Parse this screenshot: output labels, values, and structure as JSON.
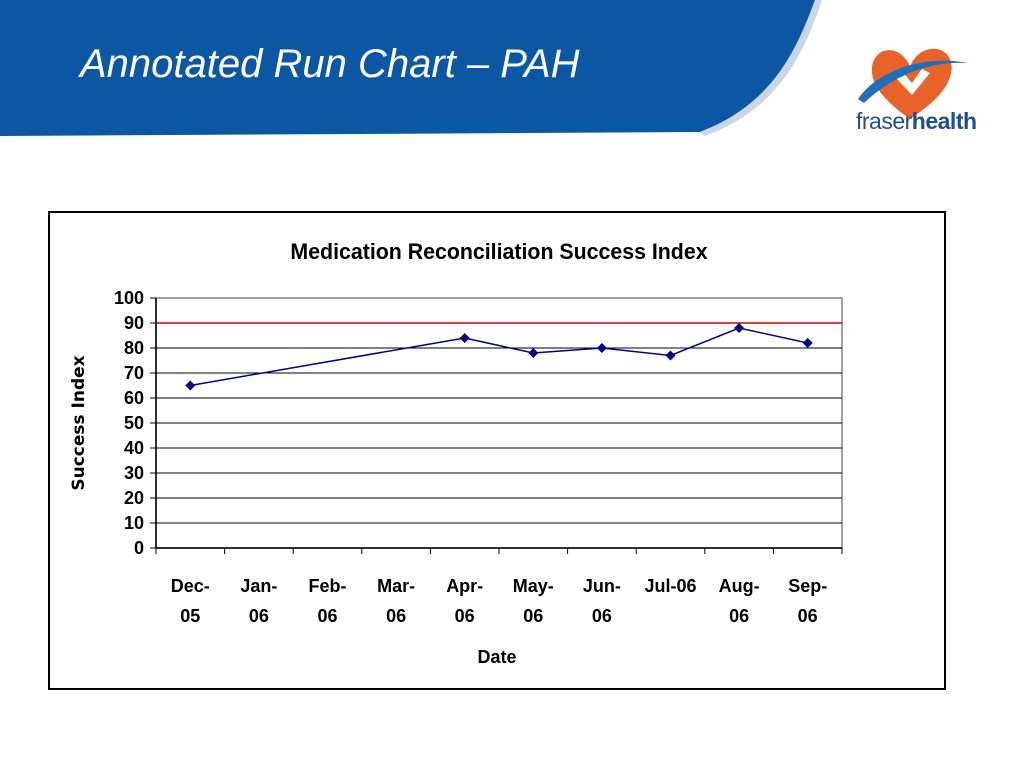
{
  "slide": {
    "title": "Annotated Run Chart – PAH"
  },
  "logo": {
    "name_part1": "fraser",
    "name_part2": "health",
    "colors": {
      "heart": "#e8622a",
      "swoosh": "#1f6fb5",
      "text": "#1f4e8c"
    }
  },
  "colors": {
    "banner": "#0b57a4",
    "line": "#000080",
    "target": "#cc0000"
  },
  "chart_data": {
    "type": "line",
    "title": "Medication Reconciliation Success Index",
    "xlabel": "Date",
    "ylabel": "Success Index",
    "ylim": [
      0,
      100
    ],
    "yticks": [
      0,
      10,
      20,
      30,
      40,
      50,
      60,
      70,
      80,
      90,
      100
    ],
    "grid": true,
    "categories": [
      [
        "Dec-",
        "05"
      ],
      [
        "Jan-",
        "06"
      ],
      [
        "Feb-",
        "06"
      ],
      [
        "Mar-",
        "06"
      ],
      [
        "Apr-",
        "06"
      ],
      [
        "May-",
        "06"
      ],
      [
        "Jun-",
        "06"
      ],
      [
        "Jul-06",
        ""
      ],
      [
        "Aug-",
        "06"
      ],
      [
        "Sep-",
        "06"
      ]
    ],
    "series": [
      {
        "values": [
          65,
          null,
          null,
          null,
          84,
          78,
          80,
          77,
          88,
          82
        ]
      }
    ],
    "reference_line": {
      "value": 90
    }
  }
}
